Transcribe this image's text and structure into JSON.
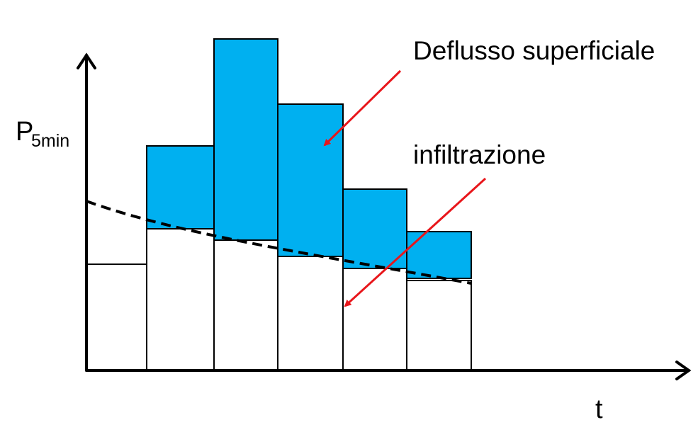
{
  "axes": {
    "y_label": "P",
    "y_label_subscript": "5min",
    "x_label": "t"
  },
  "annotations": {
    "runoff": "Deflusso superficiale",
    "infiltration": "infiltrazione"
  }
}
